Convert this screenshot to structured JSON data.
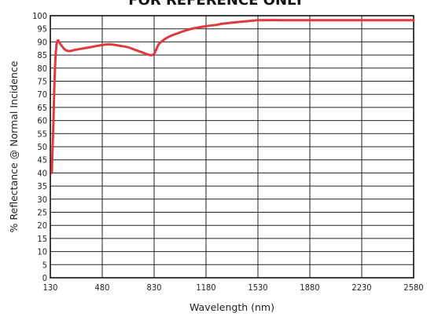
{
  "chart_data": {
    "type": "line",
    "title": "FOR REFERENCE ONLY",
    "xlabel": "Wavelength (nm)",
    "ylabel": "% Reflectance @ Normal Incidence",
    "xlim": [
      130,
      2580
    ],
    "ylim": [
      0,
      100
    ],
    "x_ticks": [
      130,
      480,
      830,
      1180,
      1530,
      1880,
      2230,
      2580
    ],
    "y_ticks": [
      0,
      5,
      10,
      15,
      20,
      25,
      30,
      35,
      40,
      45,
      50,
      55,
      60,
      65,
      70,
      75,
      80,
      85,
      90,
      95,
      100
    ],
    "grid": true,
    "series": [
      {
        "color": "#e0393e",
        "x": [
          140,
          150,
          160,
          170,
          180,
          190,
          200,
          230,
          260,
          300,
          350,
          400,
          450,
          500,
          550,
          600,
          650,
          700,
          750,
          800,
          830,
          860,
          900,
          950,
          1000,
          1050,
          1100,
          1180,
          1250,
          1300,
          1400,
          1500,
          1530,
          1700,
          1880,
          2000,
          2230,
          2400,
          2580
        ],
        "y": [
          40,
          58,
          78,
          88,
          90.5,
          90,
          89,
          87,
          86.5,
          87,
          87.5,
          88,
          88.5,
          89,
          89,
          88.5,
          88,
          87,
          86,
          85,
          85.5,
          89,
          91,
          92.5,
          93.5,
          94.5,
          95.2,
          96,
          96.5,
          97,
          97.6,
          98.1,
          98.3,
          98.3,
          98.3,
          98.3,
          98.3,
          98.3,
          98.3
        ]
      }
    ]
  }
}
